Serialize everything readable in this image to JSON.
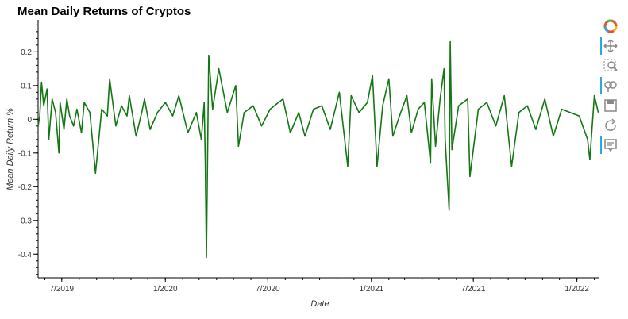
{
  "chart_data": {
    "type": "line",
    "title": "Mean Daily Returns of Cryptos",
    "xlabel": "Date",
    "ylabel": "Mean Daily Return %",
    "ylim": [
      -0.47,
      0.295
    ],
    "xlim": [
      "2019-05-20",
      "2022-02-10"
    ],
    "yticks": [
      {
        "value": 0.2,
        "label": "0.2"
      },
      {
        "value": 0.1,
        "label": "0.1"
      },
      {
        "value": 0.0,
        "label": "0"
      },
      {
        "value": -0.1,
        "label": "-0.1"
      },
      {
        "value": -0.2,
        "label": "-0.2"
      },
      {
        "value": -0.3,
        "label": "-0.3"
      },
      {
        "value": -0.4,
        "label": "-0.4"
      }
    ],
    "xticks": [
      {
        "value": "2019-07-01",
        "label": "7/2019"
      },
      {
        "value": "2020-01-01",
        "label": "1/2020"
      },
      {
        "value": "2020-07-01",
        "label": "7/2020"
      },
      {
        "value": "2021-01-01",
        "label": "1/2021"
      },
      {
        "value": "2021-07-01",
        "label": "7/2021"
      },
      {
        "value": "2022-01-01",
        "label": "1/2022"
      }
    ],
    "grid": false,
    "legend": "none",
    "color": "#137813",
    "series": [
      {
        "x": [
          "2019-05-20",
          "2019-05-23",
          "2019-05-26",
          "2019-05-30",
          "2019-06-05",
          "2019-06-08",
          "2019-06-14",
          "2019-06-20",
          "2019-06-26",
          "2019-06-28",
          "2019-07-05",
          "2019-07-10",
          "2019-07-15",
          "2019-07-22",
          "2019-07-28",
          "2019-08-05",
          "2019-08-10",
          "2019-08-20",
          "2019-08-30",
          "2019-09-10",
          "2019-09-20",
          "2019-09-24",
          "2019-10-05",
          "2019-10-15",
          "2019-10-25",
          "2019-10-29",
          "2019-11-10",
          "2019-11-20",
          "2019-11-25",
          "2019-12-05",
          "2019-12-18",
          "2020-01-01",
          "2020-01-14",
          "2020-01-25",
          "2020-02-10",
          "2020-02-25",
          "2020-03-05",
          "2020-03-10",
          "2020-03-12",
          "2020-03-14",
          "2020-03-18",
          "2020-03-25",
          "2020-04-05",
          "2020-04-20",
          "2020-05-05",
          "2020-05-10",
          "2020-05-20",
          "2020-06-05",
          "2020-06-20",
          "2020-07-05",
          "2020-07-20",
          "2020-07-28",
          "2020-08-10",
          "2020-08-25",
          "2020-09-05",
          "2020-09-20",
          "2020-10-05",
          "2020-10-20",
          "2020-11-05",
          "2020-11-20",
          "2020-11-26",
          "2020-12-10",
          "2020-12-25",
          "2021-01-03",
          "2021-01-11",
          "2021-01-21",
          "2021-02-01",
          "2021-02-08",
          "2021-02-22",
          "2021-03-05",
          "2021-03-13",
          "2021-03-25",
          "2021-04-05",
          "2021-04-16",
          "2021-04-18",
          "2021-04-25",
          "2021-05-03",
          "2021-05-10",
          "2021-05-12",
          "2021-05-19",
          "2021-05-21",
          "2021-05-24",
          "2021-06-05",
          "2021-06-21",
          "2021-06-25",
          "2021-07-10",
          "2021-07-25",
          "2021-08-10",
          "2021-08-25",
          "2021-09-07",
          "2021-09-20",
          "2021-10-05",
          "2021-10-20",
          "2021-11-05",
          "2021-11-20",
          "2021-12-05",
          "2021-12-20",
          "2022-01-05",
          "2022-01-20",
          "2022-01-24",
          "2022-02-01",
          "2022-02-08"
        ],
        "y": [
          -0.02,
          0.01,
          0.11,
          0.04,
          0.09,
          -0.06,
          0.06,
          0.02,
          -0.1,
          0.05,
          -0.03,
          0.06,
          0.01,
          -0.02,
          0.03,
          -0.04,
          0.05,
          0.02,
          -0.16,
          0.03,
          0.01,
          0.12,
          -0.02,
          0.04,
          0.01,
          0.07,
          -0.05,
          0.02,
          0.06,
          -0.03,
          0.02,
          0.05,
          0.01,
          0.07,
          -0.04,
          0.02,
          -0.06,
          0.05,
          -0.13,
          -0.41,
          0.19,
          0.03,
          0.15,
          0.02,
          0.1,
          -0.08,
          0.02,
          0.04,
          -0.02,
          0.03,
          0.05,
          0.06,
          -0.04,
          0.02,
          -0.05,
          0.03,
          0.04,
          -0.03,
          0.08,
          -0.14,
          0.07,
          0.02,
          0.05,
          0.13,
          -0.14,
          0.04,
          0.12,
          -0.05,
          0.02,
          0.07,
          -0.04,
          0.03,
          0.05,
          -0.13,
          0.12,
          -0.08,
          0.06,
          0.15,
          -0.06,
          -0.27,
          0.23,
          -0.09,
          0.04,
          0.06,
          -0.17,
          0.03,
          0.05,
          -0.02,
          0.07,
          -0.14,
          0.02,
          0.04,
          -0.03,
          0.06,
          -0.05,
          0.03,
          0.02,
          0.01,
          -0.06,
          -0.12,
          0.07,
          0.02
        ]
      }
    ]
  },
  "toolbar": {
    "tools": [
      {
        "name": "bokeh-logo-icon"
      },
      {
        "name": "pan-icon"
      },
      {
        "name": "box-zoom-icon"
      },
      {
        "name": "wheel-zoom-icon"
      },
      {
        "name": "save-icon"
      },
      {
        "name": "reset-icon"
      },
      {
        "name": "hover-icon"
      }
    ]
  }
}
